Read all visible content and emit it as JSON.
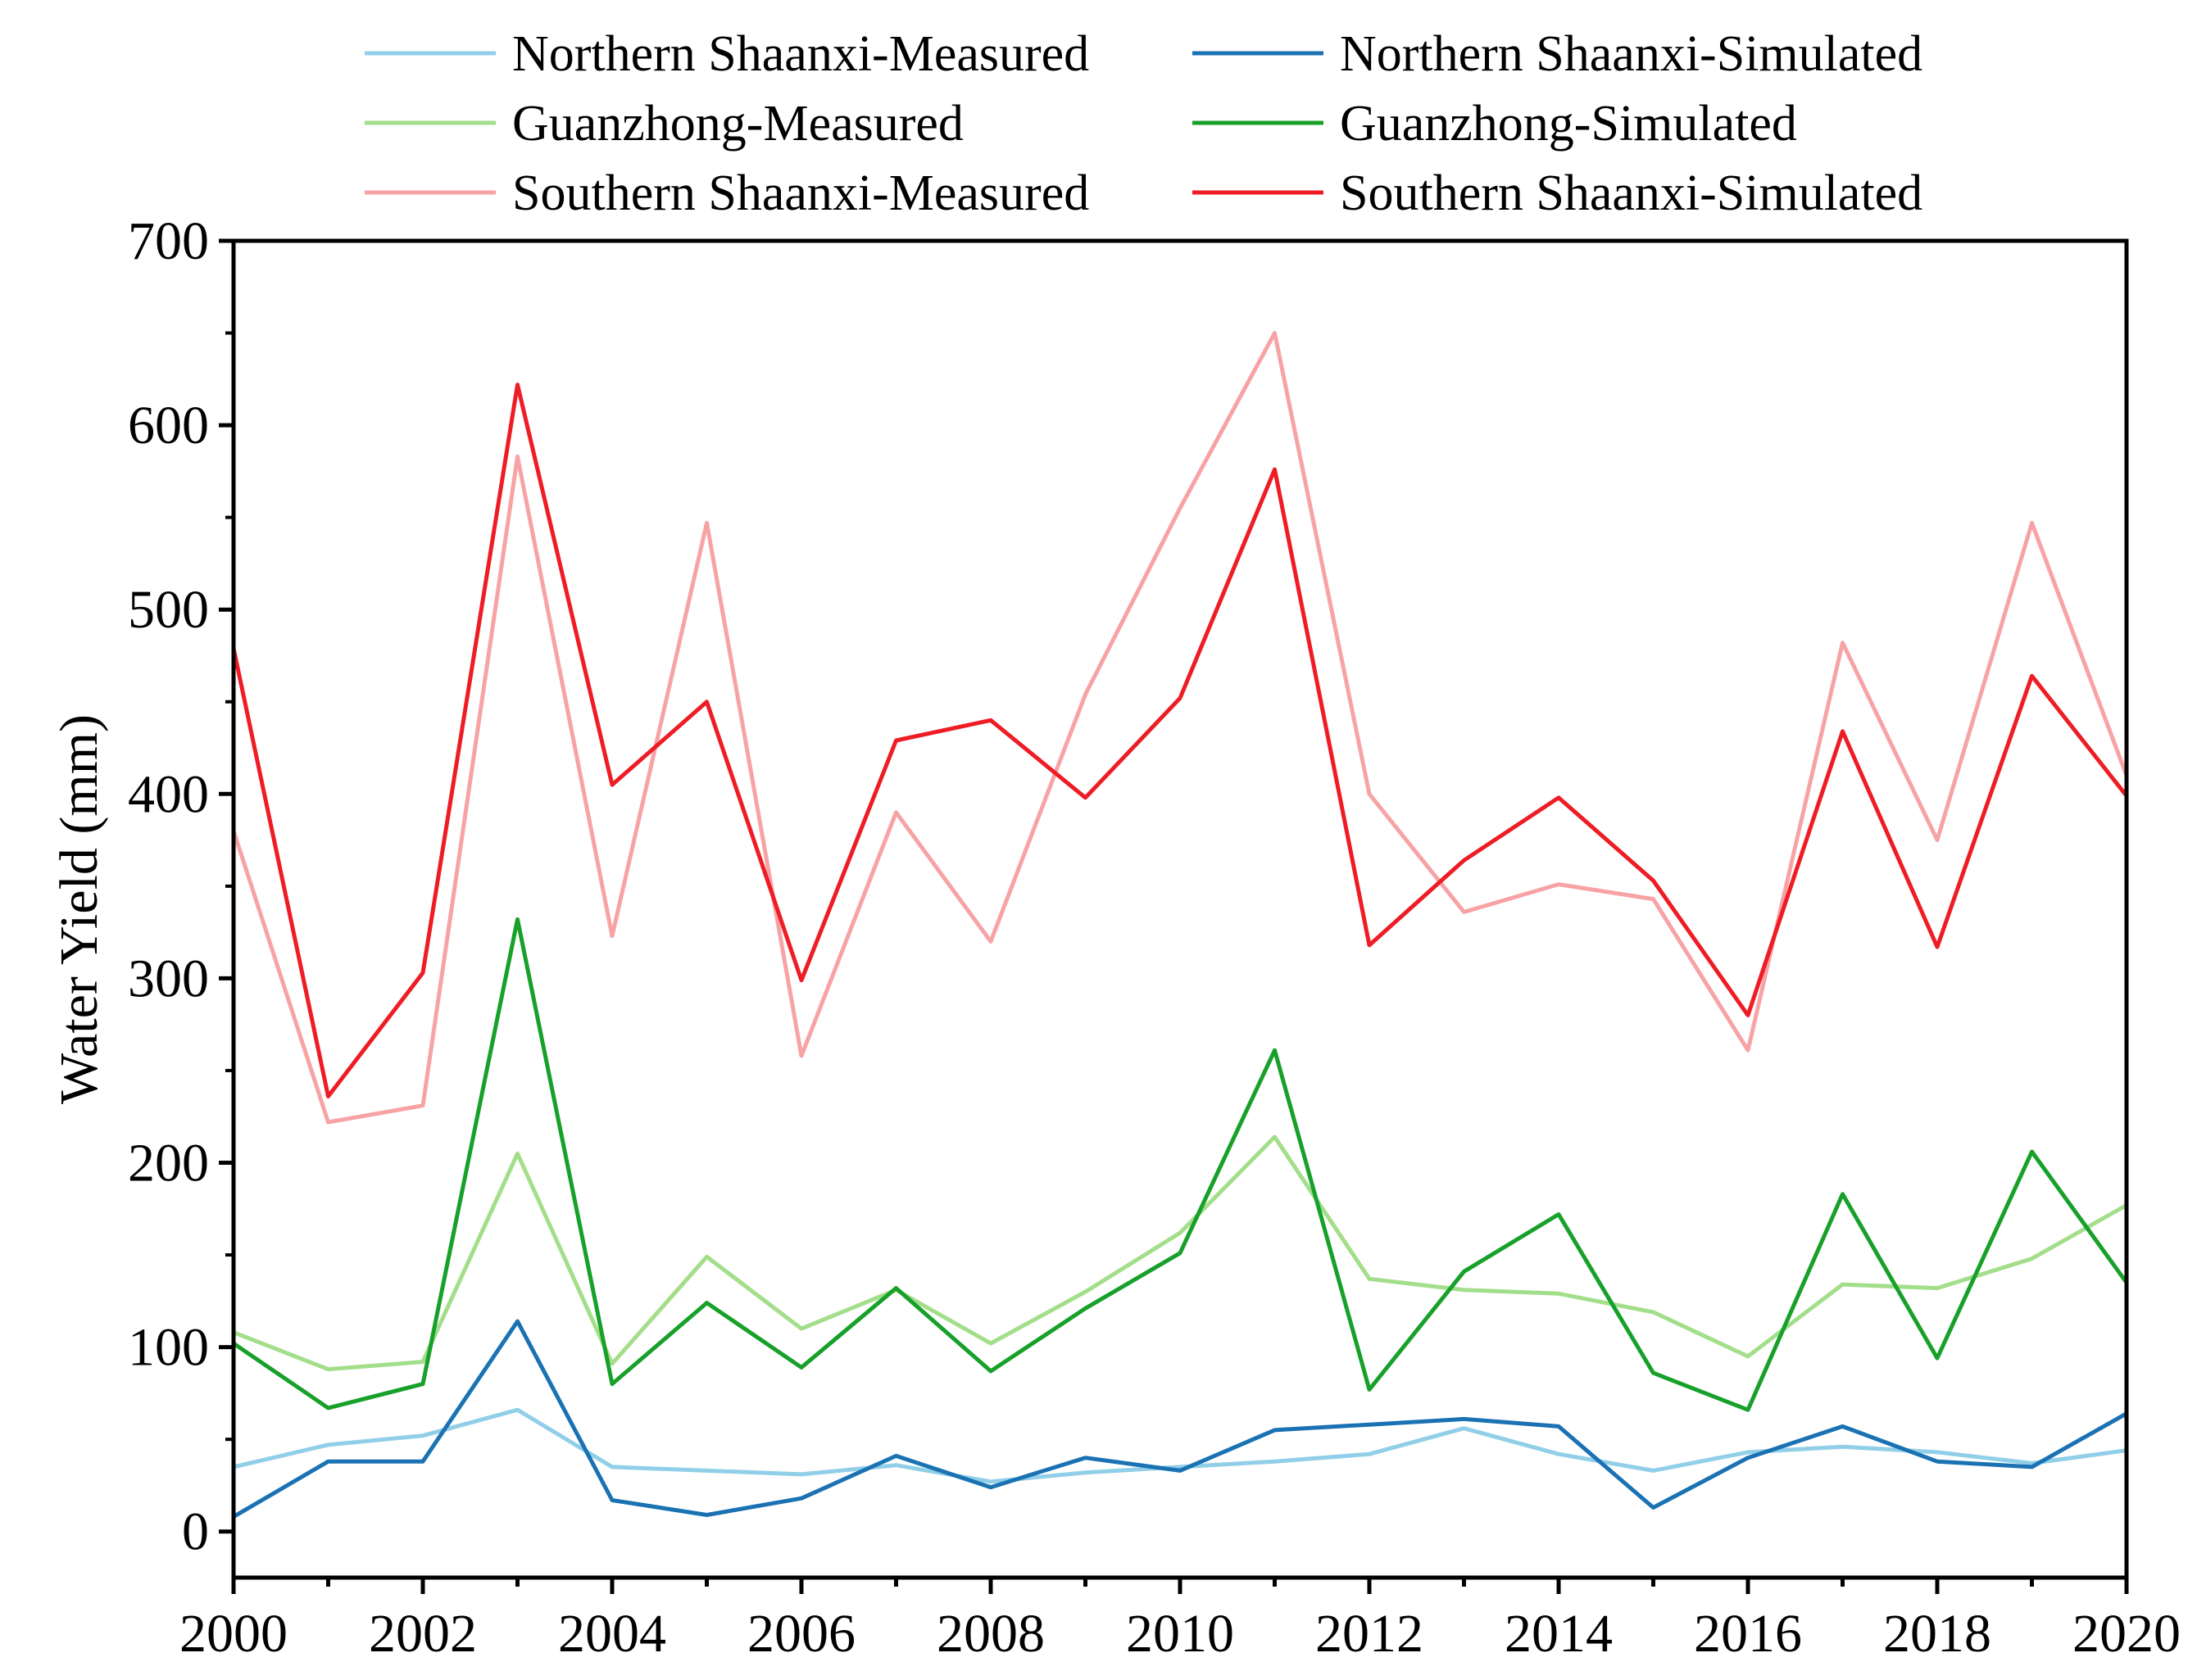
{
  "chart_data": {
    "type": "line",
    "title": "",
    "xlabel": "",
    "ylabel": "Water Yield (mm)",
    "xlim": [
      2000,
      2020
    ],
    "ylim": [
      -25,
      700
    ],
    "x_ticks": [
      2000,
      2002,
      2004,
      2006,
      2008,
      2010,
      2012,
      2014,
      2016,
      2018,
      2020
    ],
    "x_tick_labels": [
      "2000",
      "2002",
      "2004",
      "2006",
      "2008",
      "2010",
      "2012",
      "2014",
      "2016",
      "2018",
      "2020"
    ],
    "y_ticks": [
      0,
      100,
      200,
      300,
      400,
      500,
      600,
      700
    ],
    "y_tick_labels": [
      "0",
      "100",
      "200",
      "300",
      "400",
      "500",
      "600",
      "700"
    ],
    "grid": false,
    "legend_position": "top",
    "x": [
      2000,
      2001,
      2002,
      2003,
      2004,
      2005,
      2006,
      2007,
      2008,
      2009,
      2010,
      2011,
      2012,
      2013,
      2014,
      2015,
      2016,
      2017,
      2018,
      2019,
      2020
    ],
    "series": [
      {
        "name": "Northern Shaanxi-Measured",
        "color": "#91cfe8",
        "values": [
          35,
          47,
          52,
          66,
          35,
          33,
          31,
          36,
          27,
          32,
          35,
          38,
          42,
          56,
          42,
          33,
          43,
          46,
          43,
          37,
          44
        ]
      },
      {
        "name": "Northern Shaanxi-Simulated",
        "color": "#1a72b3",
        "values": [
          8,
          38,
          38,
          114,
          17,
          9,
          18,
          41,
          24,
          40,
          33,
          55,
          58,
          61,
          57,
          13,
          40,
          57,
          38,
          35,
          64
        ]
      },
      {
        "name": "Guanzhong-Measured",
        "color": "#a3de8a",
        "values": [
          108,
          88,
          92,
          205,
          91,
          149,
          110,
          131,
          102,
          130,
          162,
          214,
          137,
          131,
          129,
          119,
          95,
          134,
          132,
          148,
          177
        ]
      },
      {
        "name": "Guanzhong-Simulated",
        "color": "#17a02a",
        "values": [
          102,
          67,
          80,
          332,
          80,
          124,
          89,
          132,
          87,
          121,
          151,
          261,
          77,
          141,
          172,
          86,
          66,
          183,
          94,
          206,
          135
        ]
      },
      {
        "name": "Southern Shaanxi-Measured",
        "color": "#f7a3a6",
        "values": [
          380,
          222,
          231,
          583,
          323,
          547,
          258,
          390,
          320,
          454,
          555,
          650,
          400,
          336,
          351,
          343,
          261,
          482,
          375,
          547,
          410
        ]
      },
      {
        "name": "Southern Shaanxi-Simulated",
        "color": "#ee1c25",
        "values": [
          479,
          236,
          303,
          622,
          405,
          450,
          299,
          429,
          440,
          398,
          452,
          576,
          318,
          364,
          398,
          353,
          280,
          434,
          317,
          464,
          399
        ]
      }
    ]
  }
}
